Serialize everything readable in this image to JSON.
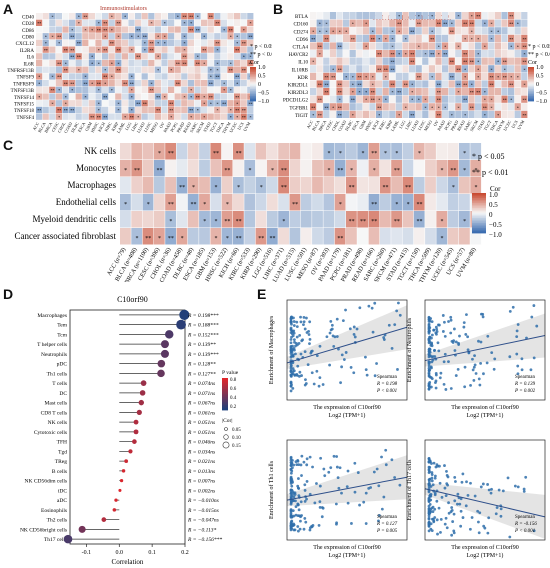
{
  "colors": {
    "neg_strong": "#3a6cb0",
    "neg_light": "#c7d7ec",
    "neutral": "#f7f7f7",
    "pos_light": "#f4c6b3",
    "pos_strong": "#c94b32",
    "lollipop_low": "#1f3f7a",
    "lollipop_high": "#e0262b",
    "scatter_point": "#2f6eaa",
    "fit_line": "#2e4f8a",
    "band": "#d8d8d8"
  },
  "panelA": {
    "label": "A",
    "title": "Immunostimulators",
    "rows": [
      "CD40",
      "CD28",
      "CD86",
      "CD80",
      "CXCL12",
      "IL2RA",
      "IL6",
      "IL6R",
      "TNFRSF13B",
      "TNFSF9",
      "TNFRSF9",
      "TNFSF13B",
      "TNFSF14",
      "TNFSF15",
      "TNFSF18",
      "TNFSF4"
    ],
    "cols": [
      "ACC",
      "BLCA",
      "BRCA",
      "CESC",
      "CHOL",
      "COAD",
      "DLBC",
      "ESCA",
      "GBM",
      "HNSC",
      "KICH",
      "KIRC",
      "KIRP",
      "LAML",
      "LGG",
      "LIHC",
      "LUAD",
      "LUSC",
      "MESO",
      "OV",
      "PAAD",
      "PCPG",
      "PRAD",
      "READ",
      "SARC",
      "SKCM",
      "STAD",
      "TGCT",
      "THCA",
      "THYM",
      "UCEC",
      "UCS",
      "UVM"
    ],
    "legend": {
      "p1": "* p < 0.05",
      "p2": "** p < 0.01",
      "cor": "Cor",
      "ticks": [
        "1.0",
        "0.5",
        "0",
        "−0.5",
        "−1.0"
      ]
    }
  },
  "panelB": {
    "label": "B",
    "title": "Immunoinhibitors",
    "rows": [
      "BTLA",
      "CD160",
      "CD274",
      "CD96",
      "CTLA4",
      "HAVCR2",
      "IL10",
      "IL10RB",
      "KDR",
      "KIR2DL1",
      "KIR2DL3",
      "PDCD1LG2",
      "TGFBR1",
      "TIGIT"
    ],
    "cols": [
      "ACC",
      "BLCA",
      "BRCA",
      "CESC",
      "CHOL",
      "COAD",
      "DLBC",
      "ESCA",
      "GBM",
      "HNSC",
      "KICH",
      "KIRC",
      "KIRP",
      "LAML",
      "LGG",
      "LIHC",
      "LUAD",
      "LUSC",
      "MESO",
      "OV",
      "PAAD",
      "PCPG",
      "PRAD",
      "READ",
      "SARC",
      "SKCM",
      "STAD",
      "TGCT",
      "THCA",
      "THYM",
      "UCEC",
      "UCS",
      "UVM"
    ],
    "legend": {
      "p1": "* p < 0.05",
      "p2": "** p < 0.01",
      "cor": "Cor",
      "ticks": [
        "1.0",
        "0.5",
        "0",
        "−0.5",
        "−1.0"
      ]
    }
  },
  "panelC": {
    "label": "C",
    "rows": [
      "NK cells",
      "Monocytes",
      "Macrophages",
      "Endothelial cells",
      "Myeloid dendritic cells",
      "Cancer associated fibroblast"
    ],
    "cols": [
      "ACC (n=79)",
      "BLCA (n=408)",
      "BRCA (n=1100)",
      "CESC (n=306)",
      "CHOL (n=36)",
      "COAD (n=458)",
      "DLBC (n=48)",
      "ESCA (n=185)",
      "GBM (n=153)",
      "HNSC (n=522)",
      "KICH (n=66)",
      "KIRC (n=533)",
      "KIRP (n=290)",
      "LGG (n=516)",
      "LIHC (n=371)",
      "LUAD (n=515)",
      "LUSC (n=501)",
      "MESO (n=87)",
      "OV (n=303)",
      "PAAD (n=179)",
      "PCPG (n=181)",
      "PRAD (n=498)",
      "READ (n=166)",
      "SARC (n=260)",
      "SKCM (n=471)",
      "STAD (n=415)",
      "TGCT (n=150)",
      "THCA (n=509)",
      "THYM (n=120)",
      "UCEC (n=545)",
      "UCS (n=57)",
      "UVM (n=80)"
    ],
    "legend": {
      "p1": "* p < 0.05",
      "p2": "** p < 0.01",
      "cor": "Cor",
      "ticks": [
        "1.0",
        "0.5",
        "0",
        "−0.5",
        "−1.0"
      ]
    },
    "cells": [
      [
        0,
        2,
        1,
        0,
        0,
        0,
        0,
        0,
        0,
        0,
        0,
        0,
        0,
        0,
        0,
        0,
        0,
        0,
        0,
        0,
        0,
        0,
        0,
        0,
        0,
        0,
        0,
        0,
        0,
        0,
        0,
        0
      ],
      [
        0,
        2,
        0,
        0,
        0,
        0,
        0,
        0,
        0,
        0,
        0,
        0,
        0,
        0,
        0,
        0,
        0,
        0,
        0,
        0,
        2,
        2,
        2,
        0,
        0,
        0,
        0,
        0,
        0,
        0,
        0,
        0
      ],
      [
        0,
        2,
        0,
        0,
        0,
        0,
        0,
        0,
        0,
        0,
        0,
        0,
        0,
        0,
        0,
        0,
        0,
        0,
        0,
        0,
        0,
        0,
        0,
        0,
        0,
        0,
        0,
        0,
        0,
        0,
        0,
        0
      ],
      [
        0,
        2,
        2,
        2,
        0,
        0,
        0,
        0,
        0,
        0,
        0,
        0,
        0,
        0,
        0,
        0,
        0,
        0,
        0,
        0,
        0,
        0,
        0,
        0,
        0,
        0,
        0,
        0,
        0,
        0,
        0,
        0
      ],
      [
        0,
        2,
        0,
        0,
        0,
        0,
        0,
        0,
        0,
        0,
        0,
        0,
        0,
        0,
        0,
        0,
        0,
        0,
        0,
        0,
        0,
        0,
        0,
        0,
        0,
        0,
        0,
        0,
        0,
        0,
        0,
        0
      ],
      [
        0,
        2,
        0,
        0,
        0,
        0,
        0,
        0,
        0,
        0,
        0,
        0,
        0,
        0,
        0,
        0,
        0,
        0,
        0,
        0,
        0,
        0,
        0,
        0,
        0,
        0,
        0,
        0,
        0,
        0,
        0,
        0
      ]
    ]
  },
  "chart_data": [
    {
      "type": "bar",
      "panel": "D",
      "title": "C10orf90",
      "xlabel": "Correlation",
      "xlim": [
        -0.15,
        0.2
      ],
      "xticks": [
        "-0.1",
        "0.0",
        "0.1",
        "0.2"
      ],
      "categories": [
        "Macrophages",
        "Tem",
        "Tcm",
        "T helper cells",
        "Neutrophils",
        "pDC",
        "Th1 cells",
        "T cells",
        "DC",
        "Mast cells",
        "CD8 T cells",
        "NK cells",
        "Cytotoxic cells",
        "TFH",
        "Tgd",
        "TReg",
        "B cells",
        "NK CD56dim cells",
        "iDC",
        "aDC",
        "Eosinophils",
        "Th2 cells",
        "NK CD56bright cells",
        "Th17 cells"
      ],
      "values": [
        0.198,
        0.188,
        0.152,
        0.139,
        0.139,
        0.128,
        0.127,
        0.074,
        0.071,
        0.067,
        0.061,
        0.051,
        0.051,
        0.046,
        0.034,
        0.021,
        0.013,
        0.007,
        0.002,
        -0.01,
        -0.015,
        -0.047,
        -0.113,
        -0.156
      ],
      "labels": [
        "R = 0.198***",
        "R = 0.188***",
        "R = 0.152***",
        "R = 0.139**",
        "R = 0.139***",
        "R = 0.128**",
        "R = 0.127**",
        "R = 0.074ns",
        "R = 0.071ns",
        "R = 0.067ns",
        "R = 0.061ns",
        "R = 0.051ns",
        "R = 0.051ns",
        "R = 0.046ns",
        "R = 0.034ns",
        "R = 0.021ns",
        "R = 0.013ns",
        "R = 0.007ns",
        "R = 0.002ns",
        "R = −0.010ns",
        "R = −0.015ns",
        "R = −0.047ns",
        "R = −0.113*",
        "R = −0.156***"
      ],
      "legend_pvalue": {
        "title": "P value",
        "ticks": [
          "0.8",
          "0.6",
          "0.4",
          "0.2"
        ]
      },
      "legend_cor": {
        "title": "|Cor|",
        "ticks": [
          "0.05",
          "0.10",
          "0.15"
        ]
      }
    },
    {
      "type": "scatter",
      "panel": "E",
      "plots": [
        {
          "ylabel": "Enrichment of Macrophages",
          "xlabel": "The  expression  of  C10orf90",
          "xlabel2": "Log2 (TPM+1)",
          "method": "Spearman",
          "R": "R = 0.198",
          "P": "P < 0.001",
          "slope": 0.198
        },
        {
          "ylabel": "Enrichment of Neutrophils",
          "xlabel": "The  expression  of  C10orf90",
          "xlabel2": "Log2 (TPM+1)",
          "method": "Spearman",
          "R": "R = 0.139",
          "P": "P = 0.002",
          "slope": 0.139
        },
        {
          "ylabel": "Enrichment of Th1 cells",
          "xlabel": "The  expression  of  C10orf90",
          "xlabel2": "Log2 (TPM+1)",
          "method": "Spearman",
          "R": "R = 0.127",
          "P": "P = 0.005",
          "slope": 0.127
        },
        {
          "ylabel": "Enrichment of Th17 cells",
          "xlabel": "The  expression  of  C10orf90",
          "xlabel2": "Log2 (TPM+1)",
          "method": "Spearman",
          "R": "R = -0.156",
          "P": "P < 0.001",
          "slope": -0.156
        }
      ]
    }
  ],
  "panelD": {
    "label": "D"
  },
  "panelE": {
    "label": "E"
  }
}
